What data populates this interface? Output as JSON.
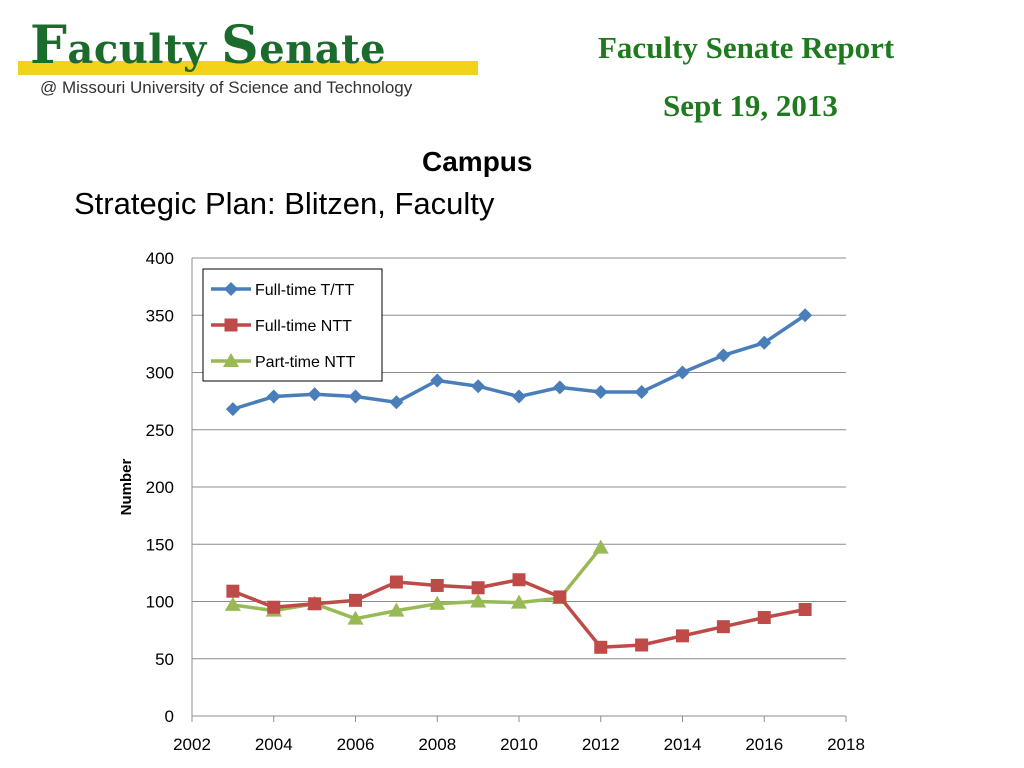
{
  "header": {
    "logo_title_first_initial": "F",
    "logo_title_first_rest": "aculty",
    "logo_title_second_initial": "S",
    "logo_title_second_rest": "enate",
    "logo_subtitle": "@ Missouri University of Science and Technology",
    "report_title": "Faculty Senate Report",
    "report_date": "Sept 19, 2013"
  },
  "slide": {
    "heading": "Campus",
    "subheading": "Strategic Plan: Blitzen, Faculty"
  },
  "colors": {
    "logo_green": "#1b6b2c",
    "logo_band": "#f2d21b",
    "report_green": "#1f7a1f",
    "series_blue": "#4a7ebb",
    "series_red": "#be4b48",
    "series_green": "#98b954"
  },
  "chart_data": {
    "type": "line",
    "title": "",
    "xlabel": "",
    "ylabel": "Number",
    "xlim": [
      2002,
      2018
    ],
    "ylim": [
      0,
      400
    ],
    "x_ticks": [
      2002,
      2004,
      2006,
      2008,
      2010,
      2012,
      2014,
      2016,
      2018
    ],
    "y_ticks": [
      0,
      50,
      100,
      150,
      200,
      250,
      300,
      350,
      400
    ],
    "grid": true,
    "legend_position": "top-left",
    "series": [
      {
        "name": "Full-time T/TT",
        "marker": "diamond",
        "color": "#4a7ebb",
        "x": [
          2003,
          2004,
          2005,
          2006,
          2007,
          2008,
          2009,
          2010,
          2011,
          2012,
          2013,
          2014,
          2015,
          2016,
          2017
        ],
        "values": [
          268,
          279,
          281,
          279,
          274,
          293,
          288,
          279,
          287,
          283,
          283,
          300,
          315,
          326,
          350
        ]
      },
      {
        "name": "Full-time NTT",
        "marker": "square",
        "color": "#be4b48",
        "x": [
          2003,
          2004,
          2005,
          2006,
          2007,
          2008,
          2009,
          2010,
          2011,
          2012,
          2013,
          2014,
          2015,
          2016,
          2017
        ],
        "values": [
          109,
          95,
          98,
          101,
          117,
          114,
          112,
          119,
          104,
          60,
          62,
          70,
          78,
          86,
          93
        ]
      },
      {
        "name": "Part-time NTT",
        "marker": "triangle",
        "color": "#98b954",
        "x": [
          2003,
          2004,
          2005,
          2006,
          2007,
          2008,
          2009,
          2010,
          2011,
          2012
        ],
        "values": [
          97,
          92,
          98,
          85,
          92,
          98,
          100,
          99,
          103,
          147
        ]
      }
    ]
  }
}
